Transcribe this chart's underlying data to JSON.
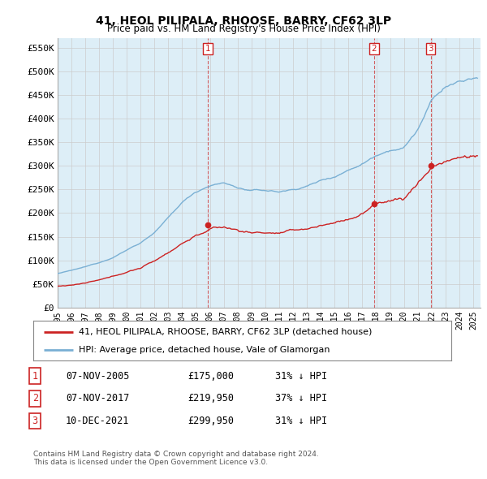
{
  "title": "41, HEOL PILIPALA, RHOOSE, BARRY, CF62 3LP",
  "subtitle": "Price paid vs. HM Land Registry's House Price Index (HPI)",
  "ylabel_ticks": [
    "£0",
    "£50K",
    "£100K",
    "£150K",
    "£200K",
    "£250K",
    "£300K",
    "£350K",
    "£400K",
    "£450K",
    "£500K",
    "£550K"
  ],
  "ytick_values": [
    0,
    50000,
    100000,
    150000,
    200000,
    250000,
    300000,
    350000,
    400000,
    450000,
    500000,
    550000
  ],
  "ylim": [
    0,
    570000
  ],
  "xlim_start": 1995.0,
  "xlim_end": 2025.5,
  "hpi_color": "#7ab0d4",
  "hpi_fill_color": "#ddeeff",
  "price_color": "#cc2222",
  "legend_label_price": "41, HEOL PILIPALA, RHOOSE, BARRY, CF62 3LP (detached house)",
  "legend_label_hpi": "HPI: Average price, detached house, Vale of Glamorgan",
  "sales": [
    {
      "num": 1,
      "date": "07-NOV-2005",
      "price": 175000,
      "year": 2005.85
    },
    {
      "num": 2,
      "date": "07-NOV-2017",
      "price": 219950,
      "year": 2017.85
    },
    {
      "num": 3,
      "date": "10-DEC-2021",
      "price": 299950,
      "year": 2021.93
    }
  ],
  "table_rows": [
    [
      "1",
      "07-NOV-2005",
      "£175,000",
      "31% ↓ HPI"
    ],
    [
      "2",
      "07-NOV-2017",
      "£219,950",
      "37% ↓ HPI"
    ],
    [
      "3",
      "10-DEC-2021",
      "£299,950",
      "31% ↓ HPI"
    ]
  ],
  "footer_line1": "Contains HM Land Registry data © Crown copyright and database right 2024.",
  "footer_line2": "This data is licensed under the Open Government Licence v3.0.",
  "background_color": "#ffffff",
  "grid_color": "#cccccc",
  "hpi_anchor_years": [
    1995,
    1996,
    1997,
    1998,
    1999,
    2000,
    2001,
    2002,
    2003,
    2004,
    2005,
    2006,
    2007,
    2008,
    2009,
    2010,
    2011,
    2012,
    2013,
    2014,
    2015,
    2016,
    2017,
    2018,
    2019,
    2020,
    2021,
    2022,
    2023,
    2024,
    2025
  ],
  "hpi_anchor_vals": [
    72000,
    78000,
    85000,
    94000,
    106000,
    122000,
    138000,
    160000,
    190000,
    222000,
    245000,
    260000,
    265000,
    255000,
    248000,
    248000,
    245000,
    250000,
    258000,
    270000,
    280000,
    295000,
    310000,
    330000,
    345000,
    350000,
    390000,
    450000,
    480000,
    490000,
    495000
  ],
  "price_anchor_years": [
    1995,
    1996,
    1997,
    1998,
    1999,
    2000,
    2001,
    2002,
    2003,
    2004,
    2005,
    2006,
    2007,
    2008,
    2009,
    2010,
    2011,
    2012,
    2013,
    2014,
    2015,
    2016,
    2017,
    2018,
    2019,
    2020,
    2021,
    2022,
    2023,
    2024,
    2025
  ],
  "price_anchor_vals": [
    45000,
    48000,
    52000,
    57000,
    63000,
    73000,
    82000,
    96000,
    115000,
    135000,
    152000,
    165000,
    168000,
    162000,
    157000,
    158000,
    157000,
    159000,
    163000,
    170000,
    176000,
    185000,
    196000,
    215000,
    225000,
    228000,
    260000,
    295000,
    310000,
    315000,
    318000
  ]
}
